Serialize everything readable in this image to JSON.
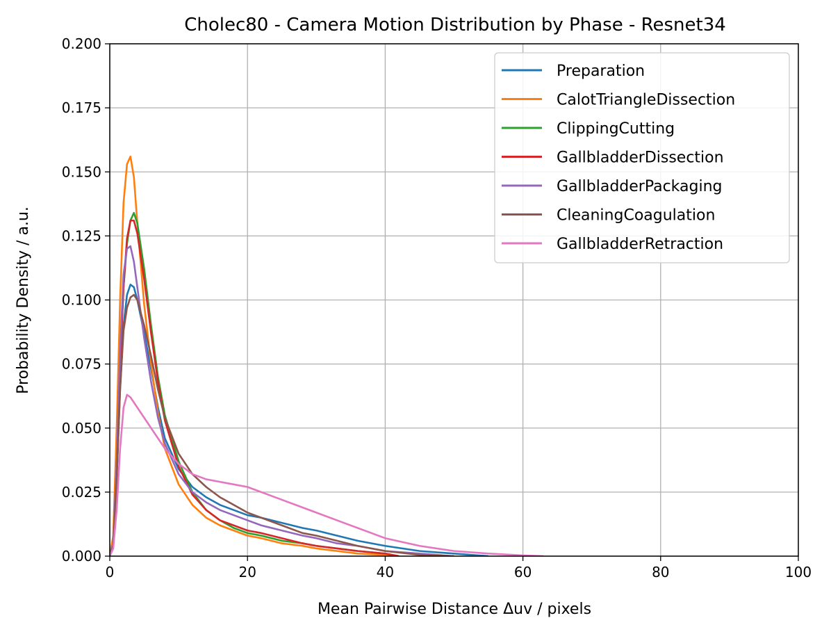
{
  "chart_data": {
    "type": "line",
    "title": "Cholec80 - Camera Motion Distribution by Phase - Resnet34",
    "xlabel": "Mean Pairwise Distance Δuv / pixels",
    "ylabel": "Probability Density / a.u.",
    "xlim": [
      0,
      100
    ],
    "ylim": [
      0,
      0.2
    ],
    "xticks": [
      0,
      20,
      40,
      60,
      80,
      100
    ],
    "xtick_labels": [
      "0",
      "20",
      "40",
      "60",
      "80",
      "100"
    ],
    "yticks": [
      0,
      0.025,
      0.05,
      0.075,
      0.1,
      0.125,
      0.15,
      0.175,
      0.2
    ],
    "ytick_labels": [
      "0.000",
      "0.025",
      "0.050",
      "0.075",
      "0.100",
      "0.125",
      "0.150",
      "0.175",
      "0.200"
    ],
    "grid": true,
    "legend_position": "top-right",
    "series": [
      {
        "name": "Preparation",
        "color": "#1f77b4",
        "x": [
          0,
          0.5,
          1,
          1.5,
          2,
          2.5,
          3,
          3.5,
          4,
          5,
          6,
          7,
          8,
          10,
          12,
          14,
          16,
          18,
          20,
          22,
          25,
          28,
          30,
          33,
          36,
          40,
          45,
          50,
          55
        ],
        "y": [
          0,
          0.005,
          0.03,
          0.065,
          0.09,
          0.102,
          0.106,
          0.105,
          0.1,
          0.087,
          0.073,
          0.058,
          0.046,
          0.034,
          0.027,
          0.023,
          0.02,
          0.018,
          0.016,
          0.015,
          0.013,
          0.011,
          0.01,
          0.008,
          0.006,
          0.004,
          0.002,
          0.001,
          0
        ]
      },
      {
        "name": "CalotTriangleDissection",
        "color": "#ff7f0e",
        "x": [
          0,
          0.5,
          1,
          1.5,
          2,
          2.5,
          3,
          3.5,
          4,
          5,
          6,
          7,
          8,
          10,
          12,
          14,
          16,
          18,
          20,
          22,
          25,
          28,
          30,
          33,
          36,
          40,
          42
        ],
        "y": [
          0,
          0.008,
          0.05,
          0.1,
          0.138,
          0.153,
          0.156,
          0.148,
          0.13,
          0.098,
          0.075,
          0.056,
          0.042,
          0.028,
          0.02,
          0.015,
          0.012,
          0.01,
          0.008,
          0.007,
          0.005,
          0.004,
          0.003,
          0.002,
          0.001,
          0.0005,
          0
        ]
      },
      {
        "name": "ClippingCutting",
        "color": "#2ca02c",
        "x": [
          0,
          0.5,
          1,
          1.5,
          2,
          2.5,
          3,
          3.5,
          4,
          5,
          6,
          7,
          8,
          10,
          12,
          14,
          16,
          18,
          20,
          22,
          25,
          28,
          30,
          33,
          36,
          40,
          42
        ],
        "y": [
          0,
          0.005,
          0.035,
          0.075,
          0.105,
          0.122,
          0.131,
          0.134,
          0.13,
          0.112,
          0.09,
          0.07,
          0.055,
          0.037,
          0.025,
          0.018,
          0.014,
          0.011,
          0.009,
          0.008,
          0.006,
          0.005,
          0.004,
          0.003,
          0.002,
          0.001,
          0
        ]
      },
      {
        "name": "GallbladderDissection",
        "color": "#d62728",
        "x": [
          0,
          0.5,
          1,
          1.5,
          2,
          2.5,
          3,
          3.5,
          4,
          5,
          6,
          7,
          8,
          10,
          12,
          14,
          16,
          18,
          20,
          22,
          25,
          28,
          30,
          33,
          36,
          40,
          42
        ],
        "y": [
          0,
          0.005,
          0.035,
          0.075,
          0.105,
          0.124,
          0.131,
          0.131,
          0.126,
          0.108,
          0.087,
          0.068,
          0.053,
          0.035,
          0.024,
          0.018,
          0.014,
          0.012,
          0.01,
          0.009,
          0.007,
          0.005,
          0.004,
          0.003,
          0.002,
          0.001,
          0
        ]
      },
      {
        "name": "GallbladderPackaging",
        "color": "#9467bd",
        "x": [
          0,
          0.5,
          1,
          1.5,
          2,
          2.5,
          3,
          3.5,
          4,
          5,
          6,
          7,
          8,
          10,
          12,
          14,
          16,
          18,
          20,
          22,
          25,
          28,
          30,
          33,
          36,
          40,
          45,
          50
        ],
        "y": [
          0,
          0.005,
          0.035,
          0.08,
          0.11,
          0.12,
          0.121,
          0.115,
          0.105,
          0.085,
          0.068,
          0.054,
          0.044,
          0.032,
          0.025,
          0.021,
          0.018,
          0.016,
          0.014,
          0.012,
          0.01,
          0.008,
          0.007,
          0.005,
          0.004,
          0.002,
          0.001,
          0
        ]
      },
      {
        "name": "CleaningCoagulation",
        "color": "#8c564b",
        "x": [
          0,
          0.5,
          1,
          1.5,
          2,
          2.5,
          3,
          3.5,
          4,
          5,
          6,
          7,
          8,
          10,
          12,
          14,
          16,
          18,
          20,
          22,
          25,
          28,
          30,
          33,
          36,
          40,
          45,
          50
        ],
        "y": [
          0,
          0.004,
          0.03,
          0.065,
          0.088,
          0.097,
          0.101,
          0.102,
          0.1,
          0.09,
          0.078,
          0.065,
          0.054,
          0.04,
          0.032,
          0.027,
          0.023,
          0.02,
          0.017,
          0.015,
          0.012,
          0.009,
          0.008,
          0.006,
          0.004,
          0.002,
          0.0005,
          0
        ]
      },
      {
        "name": "GallbladderRetraction",
        "color": "#e377c2",
        "x": [
          0,
          0.5,
          1,
          1.5,
          2,
          2.5,
          3,
          3.5,
          4,
          5,
          6,
          7,
          8,
          10,
          12,
          14,
          16,
          18,
          20,
          22,
          25,
          28,
          30,
          33,
          36,
          40,
          45,
          50,
          55,
          60,
          63
        ],
        "y": [
          0,
          0.003,
          0.018,
          0.042,
          0.058,
          0.063,
          0.062,
          0.06,
          0.058,
          0.054,
          0.05,
          0.046,
          0.042,
          0.036,
          0.032,
          0.03,
          0.029,
          0.028,
          0.027,
          0.025,
          0.022,
          0.019,
          0.017,
          0.014,
          0.011,
          0.007,
          0.004,
          0.002,
          0.001,
          0.0003,
          0
        ]
      }
    ]
  }
}
